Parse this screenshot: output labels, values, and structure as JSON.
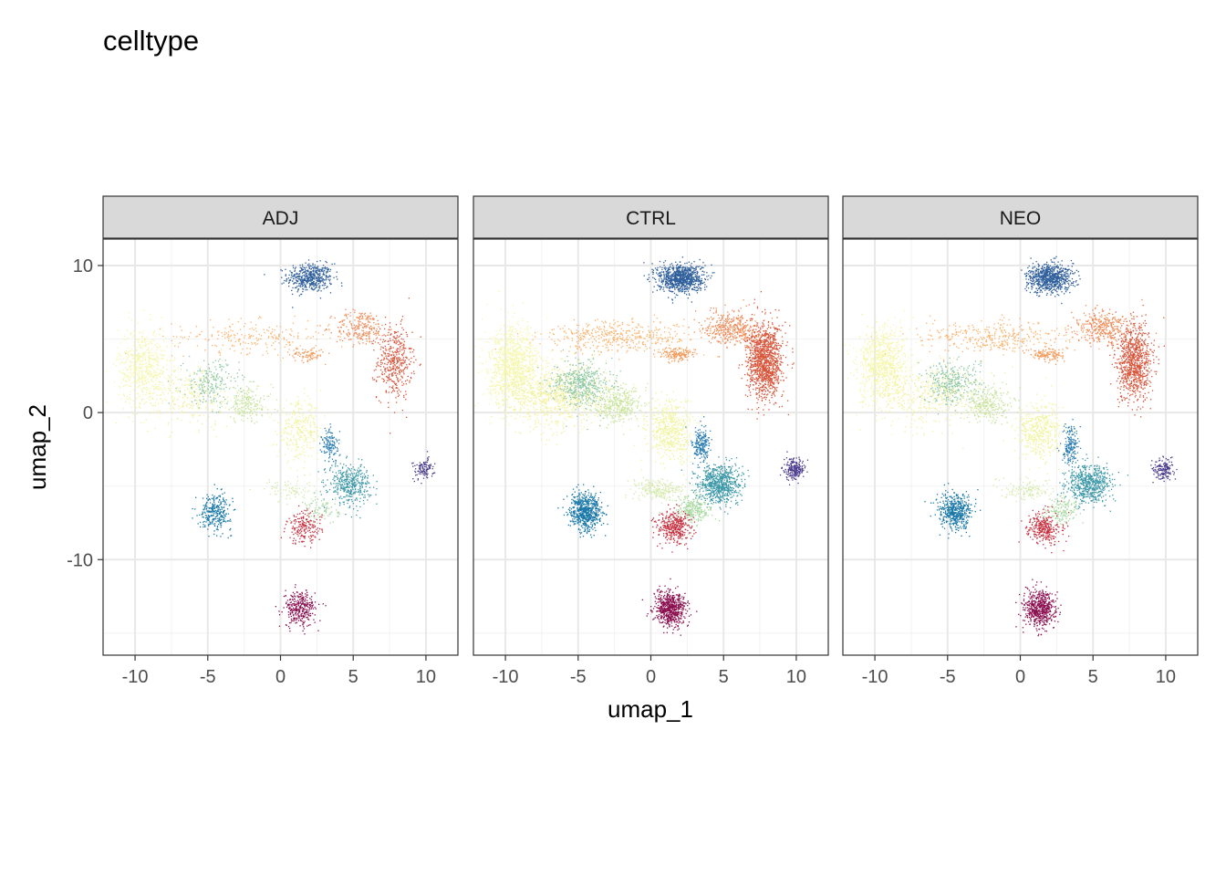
{
  "chart_data": {
    "type": "scatter",
    "title": "celltype",
    "xlabel": "umap_1",
    "ylabel": "umap_2",
    "xlim": [
      -12.2,
      12.2
    ],
    "ylim": [
      -16.5,
      11.8
    ],
    "x_ticks": [
      -10,
      -5,
      0,
      5,
      10
    ],
    "x_tick_labels": [
      "-10",
      "-5",
      "0",
      "5",
      "10"
    ],
    "y_ticks": [
      -10,
      0,
      10
    ],
    "y_tick_labels": [
      "-10",
      "0",
      "10"
    ],
    "y_minor_ticks": [
      -15,
      -5,
      5
    ],
    "x_minor_ticks": [
      -7.5,
      -2.5,
      2.5,
      7.5
    ],
    "grid": true,
    "legend": "none",
    "panels": [
      {
        "name": "ADJ",
        "density": [
          0.55,
          0.35,
          0.6,
          0.5,
          0.6,
          0.55,
          0.35,
          0.45,
          0.55,
          0.55,
          0.55,
          0.6,
          0.35,
          0.5,
          0.5,
          0.45,
          0.5,
          0.35
        ]
      },
      {
        "name": "CTRL",
        "density": [
          1.0,
          1.0,
          1.0,
          1.0,
          1.0,
          1.0,
          1.0,
          1.0,
          1.0,
          1.0,
          1.0,
          1.0,
          1.0,
          1.0,
          1.0,
          1.0,
          1.0,
          1.0
        ]
      },
      {
        "name": "NEO",
        "density": [
          0.85,
          0.75,
          0.85,
          0.8,
          0.85,
          0.85,
          0.5,
          0.7,
          0.8,
          0.8,
          0.8,
          0.8,
          0.6,
          0.8,
          0.9,
          0.75,
          0.7,
          0.55
        ]
      }
    ],
    "clusters": [
      {
        "cx": 2.0,
        "cy": 9.2,
        "sx": 1.3,
        "sy": 0.8,
        "n": 900,
        "color": "#2f5f9c"
      },
      {
        "cx": 7.8,
        "cy": 3.5,
        "sx": 1.0,
        "sy": 2.1,
        "n": 1200,
        "color": "#d8553b"
      },
      {
        "cx": 5.5,
        "cy": 5.8,
        "sx": 1.5,
        "sy": 1.0,
        "n": 400,
        "color": "#f08a56"
      },
      {
        "cx": -2.0,
        "cy": 5.2,
        "sx": 4.5,
        "sy": 0.9,
        "n": 450,
        "color": "#fbb46c"
      },
      {
        "cx": 1.8,
        "cy": 4.0,
        "sx": 1.0,
        "sy": 0.4,
        "n": 150,
        "color": "#f39a5a"
      },
      {
        "cx": -9.5,
        "cy": 3.2,
        "sx": 1.4,
        "sy": 2.2,
        "n": 1100,
        "color": "#f5f7b0"
      },
      {
        "cx": -6.5,
        "cy": 1.2,
        "sx": 3.0,
        "sy": 1.8,
        "n": 900,
        "color": "#f2f1a0"
      },
      {
        "cx": -4.8,
        "cy": 2.0,
        "sx": 1.6,
        "sy": 1.3,
        "n": 450,
        "color": "#8cc8a3"
      },
      {
        "cx": -2.3,
        "cy": 0.6,
        "sx": 1.4,
        "sy": 1.0,
        "n": 350,
        "color": "#c8e49c"
      },
      {
        "cx": 1.3,
        "cy": -1.2,
        "sx": 1.3,
        "sy": 1.6,
        "n": 550,
        "color": "#f0f3a0"
      },
      {
        "cx": 4.7,
        "cy": -4.8,
        "sx": 1.2,
        "sy": 1.1,
        "n": 750,
        "color": "#3c98a8"
      },
      {
        "cx": 3.4,
        "cy": -2.2,
        "sx": 0.5,
        "sy": 1.0,
        "n": 220,
        "color": "#2e7fb3"
      },
      {
        "cx": 2.8,
        "cy": -6.6,
        "sx": 1.0,
        "sy": 0.8,
        "n": 260,
        "color": "#a8d9a0"
      },
      {
        "cx": 1.6,
        "cy": -7.8,
        "sx": 1.0,
        "sy": 0.9,
        "n": 380,
        "color": "#c8303f"
      },
      {
        "cx": 1.3,
        "cy": -13.3,
        "sx": 0.9,
        "sy": 1.0,
        "n": 650,
        "color": "#8b1050"
      },
      {
        "cx": -4.5,
        "cy": -6.7,
        "sx": 0.9,
        "sy": 1.0,
        "n": 650,
        "color": "#1a78a8"
      },
      {
        "cx": 9.8,
        "cy": -3.8,
        "sx": 0.6,
        "sy": 0.6,
        "n": 220,
        "color": "#4a3a8c"
      },
      {
        "cx": 0.5,
        "cy": -5.2,
        "sx": 1.4,
        "sy": 0.6,
        "n": 250,
        "color": "#d6eab0"
      }
    ]
  }
}
